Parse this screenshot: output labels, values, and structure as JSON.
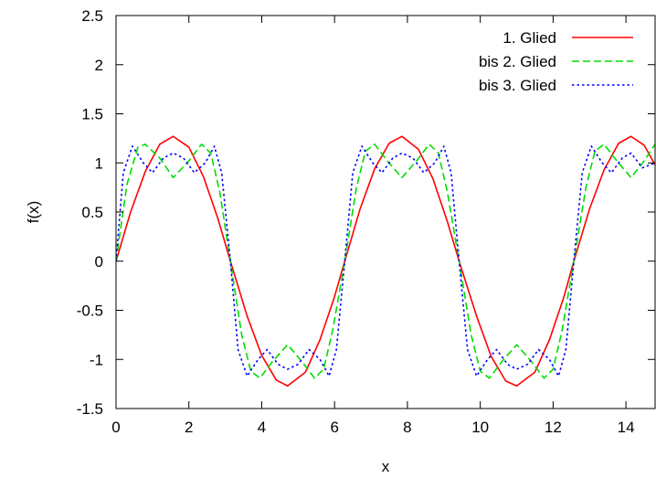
{
  "chart_data": {
    "type": "line",
    "title": "",
    "xlabel": "x",
    "ylabel": "f(x)",
    "xlim": [
      0,
      14.8
    ],
    "ylim": [
      -1.5,
      2.5
    ],
    "x_ticks": [
      0,
      2,
      4,
      6,
      8,
      10,
      12,
      14
    ],
    "x_tick_labels": [
      "0",
      "2",
      "4",
      "6",
      "8",
      "10",
      "12",
      "14"
    ],
    "y_ticks": [
      -1.5,
      -1,
      -0.5,
      0,
      0.5,
      1,
      1.5,
      2,
      2.5
    ],
    "y_tick_labels": [
      "-1.5",
      "-1",
      "-0.5",
      "0",
      "0.5",
      "1",
      "1.5",
      "2",
      "2.5"
    ],
    "grid": false,
    "legend_position": "top-right",
    "series": [
      {
        "name": "1. Glied",
        "color": "#ff0000",
        "dash": "solid",
        "x": [
          0,
          0.4,
          0.8,
          1.2,
          1.57,
          2.0,
          2.4,
          2.8,
          3.14,
          3.6,
          4.0,
          4.4,
          4.71,
          5.2,
          5.6,
          6.0,
          6.28,
          6.7,
          7.1,
          7.5,
          7.85,
          8.3,
          8.7,
          9.1,
          9.42,
          9.9,
          10.3,
          10.7,
          11.0,
          11.5,
          11.9,
          12.3,
          12.57,
          13.0,
          13.4,
          13.8,
          14.14,
          14.5,
          14.8
        ],
        "y": [
          0,
          0.5,
          0.91,
          1.19,
          1.27,
          1.16,
          0.86,
          0.43,
          0,
          -0.56,
          -0.96,
          -1.21,
          -1.27,
          -1.13,
          -0.8,
          -0.36,
          0,
          0.53,
          0.94,
          1.2,
          1.27,
          1.14,
          0.84,
          0.4,
          0,
          -0.56,
          -0.97,
          -1.22,
          -1.27,
          -1.13,
          -0.8,
          -0.36,
          0,
          0.53,
          0.93,
          1.2,
          1.27,
          1.18,
          0.98
        ]
      },
      {
        "name": "bis 2. Glied",
        "color": "#00dd00",
        "dash": "dashed",
        "x": [
          0,
          0.3,
          0.6,
          0.8,
          1.2,
          1.57,
          2.0,
          2.35,
          2.6,
          2.85,
          3.14,
          3.45,
          3.7,
          3.95,
          4.3,
          4.71,
          5.1,
          5.45,
          5.7,
          5.95,
          6.28,
          6.6,
          6.85,
          7.1,
          7.45,
          7.85,
          8.25,
          8.6,
          8.85,
          9.1,
          9.42,
          9.75,
          10.0,
          10.25,
          10.6,
          11.0,
          11.4,
          11.75,
          12.0,
          12.25,
          12.57,
          12.9,
          13.15,
          13.4,
          13.75,
          14.14,
          14.5,
          14.8
        ],
        "y": [
          0,
          0.78,
          1.16,
          1.19,
          1.05,
          0.85,
          1.02,
          1.19,
          1.1,
          0.7,
          0,
          -0.75,
          -1.12,
          -1.19,
          -1.02,
          -0.85,
          -1.02,
          -1.19,
          -1.1,
          -0.7,
          0,
          0.75,
          1.12,
          1.19,
          1.02,
          0.85,
          1.02,
          1.19,
          1.1,
          0.7,
          0,
          -0.75,
          -1.12,
          -1.19,
          -1.02,
          -0.85,
          -1.02,
          -1.19,
          -1.1,
          -0.7,
          0,
          0.75,
          1.12,
          1.19,
          1.02,
          0.85,
          1.02,
          1.19
        ]
      },
      {
        "name": "bis 3. Glied",
        "color": "#0000ff",
        "dash": "dotted",
        "x": [
          0,
          0.2,
          0.45,
          0.75,
          1.0,
          1.3,
          1.57,
          1.85,
          2.15,
          2.45,
          2.7,
          2.9,
          3.14,
          3.35,
          3.6,
          3.9,
          4.15,
          4.45,
          4.71,
          5.0,
          5.3,
          5.6,
          5.85,
          6.05,
          6.28,
          6.5,
          6.75,
          7.05,
          7.3,
          7.6,
          7.85,
          8.15,
          8.45,
          8.75,
          9.0,
          9.2,
          9.42,
          9.65,
          9.9,
          10.2,
          10.45,
          10.75,
          11.0,
          11.3,
          11.6,
          11.9,
          12.15,
          12.35,
          12.57,
          12.8,
          13.05,
          13.35,
          13.6,
          13.9,
          14.14,
          14.45,
          14.8
        ],
        "y": [
          0,
          0.9,
          1.17,
          1.0,
          0.9,
          1.05,
          1.1,
          1.05,
          0.9,
          1.0,
          1.17,
          0.9,
          0,
          -0.9,
          -1.17,
          -1.0,
          -0.9,
          -1.05,
          -1.1,
          -1.05,
          -0.9,
          -1.0,
          -1.17,
          -0.9,
          0,
          0.9,
          1.17,
          1.0,
          0.9,
          1.05,
          1.1,
          1.05,
          0.9,
          1.0,
          1.17,
          0.9,
          0,
          -0.9,
          -1.17,
          -1.0,
          -0.9,
          -1.05,
          -1.1,
          -1.05,
          -0.9,
          -1.0,
          -1.17,
          -0.9,
          0,
          0.9,
          1.17,
          1.0,
          0.9,
          1.05,
          1.1,
          0.95,
          1.0
        ]
      }
    ]
  }
}
